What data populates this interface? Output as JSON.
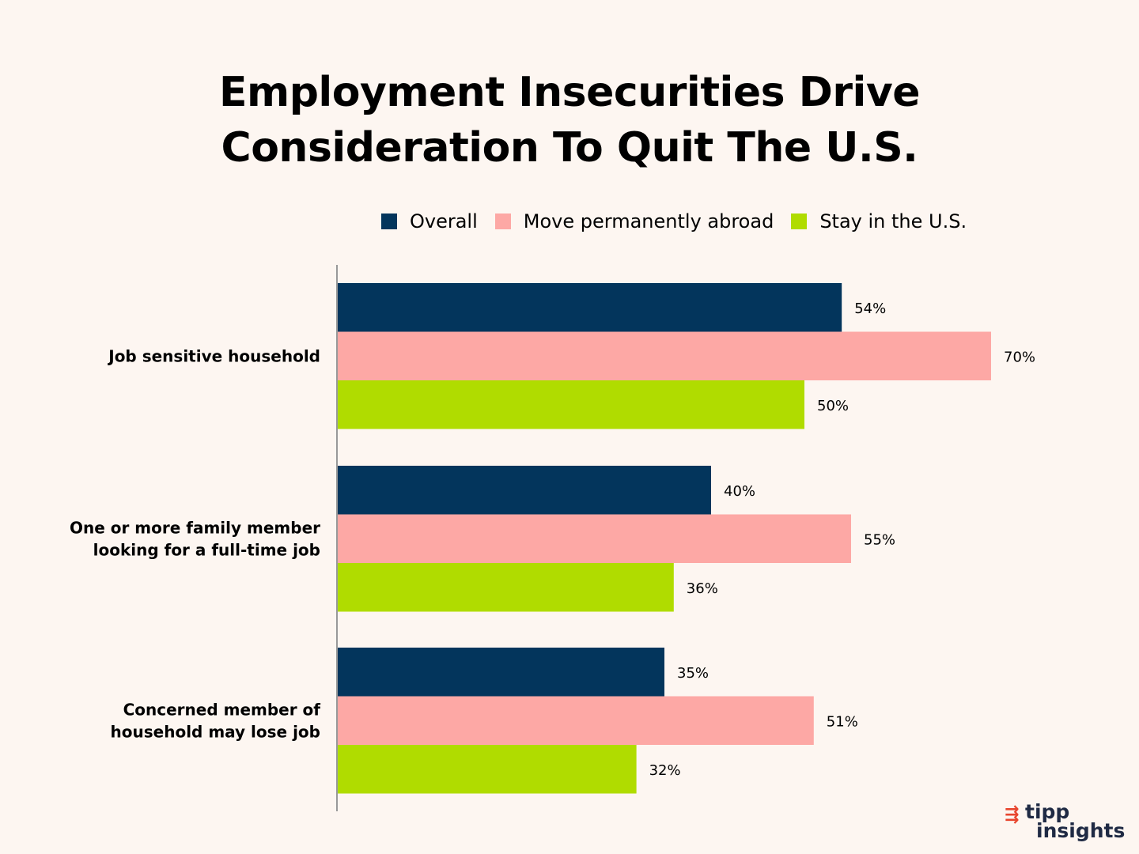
{
  "colors": {
    "background": "#fdf6f1",
    "overall": "#03355c",
    "abroad": "#fda8a5",
    "stay": "#b0dc00",
    "axis": "#999999",
    "logo_text": "#1f2a44",
    "logo_accent": "#e8452e"
  },
  "logo": {
    "line1": "tipp",
    "line2": "insights"
  },
  "chart_data": {
    "type": "bar",
    "orientation": "horizontal",
    "title": "Employment Insecurities Drive Consideration To Quit The U.S.",
    "title_lines": [
      "Employment Insecurities Drive",
      "Consideration To Quit The U.S."
    ],
    "legend_position": "top",
    "grid": false,
    "xlim": [
      0,
      70
    ],
    "categories": [
      {
        "label_lines": [
          "Job sensitive household"
        ]
      },
      {
        "label_lines": [
          "One or more family member",
          "looking for a full-time job"
        ]
      },
      {
        "label_lines": [
          "Concerned member of",
          "household may lose job"
        ]
      }
    ],
    "series": [
      {
        "name": "Overall",
        "color": "#03355c",
        "values": [
          54,
          40,
          35
        ],
        "labels": [
          "54%",
          "40%",
          "35%"
        ]
      },
      {
        "name": "Move permanently abroad",
        "color": "#fda8a5",
        "values": [
          70,
          55,
          51
        ],
        "labels": [
          "70%",
          "55%",
          "51%"
        ]
      },
      {
        "name": "Stay in the U.S.",
        "color": "#b0dc00",
        "values": [
          50,
          36,
          32
        ],
        "labels": [
          "50%",
          "36%",
          "32%"
        ]
      }
    ]
  }
}
